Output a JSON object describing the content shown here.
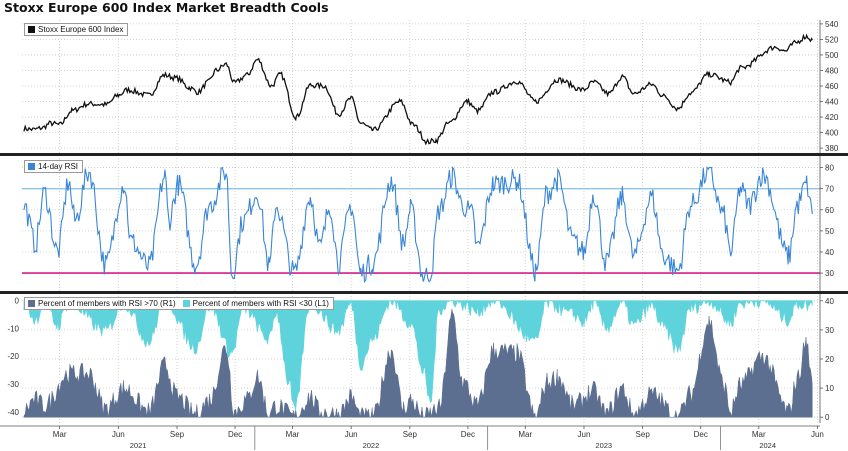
{
  "title": "Stoxx Europe 600 Index Market Breadth Cools",
  "colors": {
    "index_line": "#111111",
    "rsi_line": "#3a86d4",
    "overbought_line": "#8ec5e6",
    "oversold_line": "#d61c8a",
    "pct_above70": "#5c6f91",
    "pct_below30": "#5fd3dc"
  },
  "chart_data": [
    {
      "type": "line",
      "panel": "top",
      "series": [
        {
          "name": "Stoxx Europe 600 Index",
          "anchors": [
            [
              "2021-01-04",
              405
            ],
            [
              "2021-01-20",
              404
            ],
            [
              "2021-02-01",
              406
            ],
            [
              "2021-02-15",
              412
            ],
            [
              "2021-03-01",
              410
            ],
            [
              "2021-03-20",
              428
            ],
            [
              "2021-04-15",
              437
            ],
            [
              "2021-05-13",
              436
            ],
            [
              "2021-06-01",
              448
            ],
            [
              "2021-06-15",
              455
            ],
            [
              "2021-07-19",
              448
            ],
            [
              "2021-08-12",
              474
            ],
            [
              "2021-09-01",
              470
            ],
            [
              "2021-09-20",
              458
            ],
            [
              "2021-10-04",
              452
            ],
            [
              "2021-10-20",
              465
            ],
            [
              "2021-11-01",
              480
            ],
            [
              "2021-11-17",
              488
            ],
            [
              "2021-11-30",
              464
            ],
            [
              "2021-12-20",
              474
            ],
            [
              "2022-01-05",
              494
            ],
            [
              "2022-01-27",
              460
            ],
            [
              "2022-02-10",
              475
            ],
            [
              "2022-03-07",
              420
            ],
            [
              "2022-03-29",
              461
            ],
            [
              "2022-04-20",
              460
            ],
            [
              "2022-05-12",
              424
            ],
            [
              "2022-06-01",
              444
            ],
            [
              "2022-06-16",
              412
            ],
            [
              "2022-07-05",
              403
            ],
            [
              "2022-08-17",
              440
            ],
            [
              "2022-09-06",
              410
            ],
            [
              "2022-09-29",
              388
            ],
            [
              "2022-10-12",
              390
            ],
            [
              "2022-11-01",
              412
            ],
            [
              "2022-11-30",
              440
            ],
            [
              "2022-12-16",
              428
            ],
            [
              "2023-01-10",
              452
            ],
            [
              "2023-02-16",
              466
            ],
            [
              "2023-03-17",
              440
            ],
            [
              "2023-04-21",
              468
            ],
            [
              "2023-05-31",
              455
            ],
            [
              "2023-06-16",
              465
            ],
            [
              "2023-07-10",
              450
            ],
            [
              "2023-07-31",
              472
            ],
            [
              "2023-08-18",
              450
            ],
            [
              "2023-09-15",
              462
            ],
            [
              "2023-10-04",
              447
            ],
            [
              "2023-10-26",
              431
            ],
            [
              "2023-11-15",
              451
            ],
            [
              "2023-12-14",
              475
            ],
            [
              "2024-01-17",
              465
            ],
            [
              "2024-02-01",
              483
            ],
            [
              "2024-03-28",
              510
            ],
            [
              "2024-04-12",
              505
            ],
            [
              "2024-04-26",
              515
            ],
            [
              "2024-05-15",
              524
            ],
            [
              "2024-05-24",
              519
            ]
          ]
        }
      ],
      "ylim": [
        375,
        545
      ],
      "yticks": [
        380,
        400,
        420,
        440,
        460,
        480,
        500,
        520,
        540
      ]
    },
    {
      "type": "line",
      "panel": "middle",
      "series": [
        {
          "name": "14-day RSI",
          "anchors": [
            [
              "2021-01-04",
              62
            ],
            [
              "2021-01-22",
              44
            ],
            [
              "2021-02-05",
              68
            ],
            [
              "2021-02-26",
              40
            ],
            [
              "2021-03-15",
              73
            ],
            [
              "2021-03-25",
              55
            ],
            [
              "2021-04-16",
              78
            ],
            [
              "2021-05-12",
              34
            ],
            [
              "2021-06-10",
              72
            ],
            [
              "2021-06-21",
              45
            ],
            [
              "2021-07-19",
              33
            ],
            [
              "2021-08-13",
              76
            ],
            [
              "2021-08-19",
              55
            ],
            [
              "2021-09-03",
              72
            ],
            [
              "2021-09-30",
              34
            ],
            [
              "2021-10-22",
              62
            ],
            [
              "2021-11-17",
              78
            ],
            [
              "2021-11-26",
              30
            ],
            [
              "2021-12-14",
              55
            ],
            [
              "2022-01-05",
              68
            ],
            [
              "2022-01-24",
              33
            ],
            [
              "2022-02-03",
              62
            ],
            [
              "2022-03-04",
              30
            ],
            [
              "2022-03-29",
              66
            ],
            [
              "2022-04-13",
              42
            ],
            [
              "2022-04-29",
              62
            ],
            [
              "2022-05-12",
              35
            ],
            [
              "2022-06-01",
              62
            ],
            [
              "2022-06-16",
              30
            ],
            [
              "2022-07-05",
              35
            ],
            [
              "2022-08-03",
              74
            ],
            [
              "2022-08-22",
              44
            ],
            [
              "2022-09-02",
              60
            ],
            [
              "2022-09-23",
              28
            ],
            [
              "2022-10-03",
              30
            ],
            [
              "2022-10-17",
              60
            ],
            [
              "2022-11-07",
              76
            ],
            [
              "2022-11-23",
              62
            ],
            [
              "2022-12-07",
              58
            ],
            [
              "2022-12-16",
              42
            ],
            [
              "2023-01-10",
              72
            ],
            [
              "2023-02-16",
              74
            ],
            [
              "2023-03-17",
              31
            ],
            [
              "2023-04-04",
              68
            ],
            [
              "2023-04-21",
              74
            ],
            [
              "2023-05-15",
              45
            ],
            [
              "2023-06-01",
              40
            ],
            [
              "2023-06-16",
              68
            ],
            [
              "2023-07-06",
              35
            ],
            [
              "2023-07-31",
              66
            ],
            [
              "2023-08-18",
              38
            ],
            [
              "2023-09-15",
              66
            ],
            [
              "2023-10-04",
              38
            ],
            [
              "2023-10-26",
              31
            ],
            [
              "2023-11-15",
              62
            ],
            [
              "2023-12-14",
              78
            ],
            [
              "2024-01-05",
              58
            ],
            [
              "2024-01-17",
              40
            ],
            [
              "2024-02-01",
              70
            ],
            [
              "2024-02-15",
              62
            ],
            [
              "2024-03-07",
              77
            ],
            [
              "2024-04-17",
              38
            ],
            [
              "2024-04-30",
              62
            ],
            [
              "2024-05-15",
              72
            ],
            [
              "2024-05-24",
              58
            ]
          ]
        }
      ],
      "ylim": [
        22,
        85
      ],
      "yticks": [
        30,
        40,
        50,
        60,
        70,
        80
      ],
      "reference_lines": [
        70,
        30
      ]
    },
    {
      "type": "area",
      "panel": "bottom",
      "series": [
        {
          "name": "Percent of members with RSI >70 (R1)",
          "axis": "right",
          "anchors": [
            [
              "2021-01-04",
              2
            ],
            [
              "2021-01-20",
              6
            ],
            [
              "2021-02-05",
              4
            ],
            [
              "2021-03-15",
              15
            ],
            [
              "2021-04-16",
              15
            ],
            [
              "2021-05-12",
              3
            ],
            [
              "2021-06-10",
              10
            ],
            [
              "2021-07-19",
              2
            ],
            [
              "2021-08-13",
              18
            ],
            [
              "2021-09-01",
              7
            ],
            [
              "2021-09-30",
              1
            ],
            [
              "2021-10-22",
              6
            ],
            [
              "2021-11-17",
              24
            ],
            [
              "2021-11-30",
              2
            ],
            [
              "2021-12-20",
              6
            ],
            [
              "2022-01-05",
              14
            ],
            [
              "2022-01-24",
              1
            ],
            [
              "2022-02-03",
              4
            ],
            [
              "2022-03-04",
              0
            ],
            [
              "2022-03-29",
              7
            ],
            [
              "2022-04-13",
              2
            ],
            [
              "2022-05-12",
              1
            ],
            [
              "2022-06-01",
              7
            ],
            [
              "2022-06-16",
              0
            ],
            [
              "2022-07-05",
              0
            ],
            [
              "2022-08-03",
              23
            ],
            [
              "2022-08-22",
              3
            ],
            [
              "2022-09-02",
              6
            ],
            [
              "2022-09-23",
              0
            ],
            [
              "2022-10-17",
              3
            ],
            [
              "2022-11-07",
              35
            ],
            [
              "2022-11-23",
              12
            ],
            [
              "2022-12-16",
              4
            ],
            [
              "2023-01-10",
              23
            ],
            [
              "2023-02-16",
              22
            ],
            [
              "2023-03-17",
              0
            ],
            [
              "2023-04-04",
              12
            ],
            [
              "2023-04-21",
              14
            ],
            [
              "2023-05-15",
              4
            ],
            [
              "2023-06-16",
              9
            ],
            [
              "2023-07-06",
              1
            ],
            [
              "2023-07-31",
              10
            ],
            [
              "2023-08-18",
              1
            ],
            [
              "2023-09-15",
              8
            ],
            [
              "2023-10-26",
              0
            ],
            [
              "2023-11-15",
              8
            ],
            [
              "2023-12-14",
              33
            ],
            [
              "2024-01-05",
              12
            ],
            [
              "2024-01-17",
              2
            ],
            [
              "2024-02-01",
              11
            ],
            [
              "2024-03-07",
              21
            ],
            [
              "2024-04-17",
              2
            ],
            [
              "2024-04-30",
              13
            ],
            [
              "2024-05-15",
              26
            ],
            [
              "2024-05-24",
              11
            ]
          ]
        },
        {
          "name": "Percent of members with RSI <30 (L1)",
          "axis": "left",
          "anchors": [
            [
              "2021-01-04",
              -1
            ],
            [
              "2021-01-22",
              -7
            ],
            [
              "2021-02-05",
              -1
            ],
            [
              "2021-02-26",
              -9
            ],
            [
              "2021-03-15",
              -1
            ],
            [
              "2021-05-12",
              -11
            ],
            [
              "2021-06-10",
              -1
            ],
            [
              "2021-07-19",
              -15
            ],
            [
              "2021-08-13",
              0
            ],
            [
              "2021-09-30",
              -17
            ],
            [
              "2021-10-22",
              -2
            ],
            [
              "2021-11-26",
              -19
            ],
            [
              "2021-12-14",
              -3
            ],
            [
              "2022-01-24",
              -14
            ],
            [
              "2022-02-03",
              -4
            ],
            [
              "2022-02-24",
              -30
            ],
            [
              "2022-03-04",
              -40
            ],
            [
              "2022-03-29",
              -1
            ],
            [
              "2022-05-12",
              -11
            ],
            [
              "2022-06-01",
              -1
            ],
            [
              "2022-06-16",
              -23
            ],
            [
              "2022-07-05",
              -14
            ],
            [
              "2022-08-03",
              0
            ],
            [
              "2022-09-02",
              -8
            ],
            [
              "2022-09-23",
              -26
            ],
            [
              "2022-10-03",
              -37
            ],
            [
              "2022-10-17",
              -3
            ],
            [
              "2022-11-07",
              0
            ],
            [
              "2022-12-16",
              -4
            ],
            [
              "2023-01-10",
              0
            ],
            [
              "2023-03-17",
              -15
            ],
            [
              "2023-04-04",
              -1
            ],
            [
              "2023-05-15",
              -5
            ],
            [
              "2023-06-01",
              -8
            ],
            [
              "2023-06-16",
              -1
            ],
            [
              "2023-07-06",
              -10
            ],
            [
              "2023-07-31",
              -1
            ],
            [
              "2023-08-18",
              -9
            ],
            [
              "2023-09-15",
              -2
            ],
            [
              "2023-10-04",
              -10
            ],
            [
              "2023-10-26",
              -18
            ],
            [
              "2023-11-15",
              -3
            ],
            [
              "2023-12-14",
              0
            ],
            [
              "2024-01-17",
              -8
            ],
            [
              "2024-02-01",
              -1
            ],
            [
              "2024-03-07",
              0
            ],
            [
              "2024-04-17",
              -7
            ],
            [
              "2024-04-30",
              -1
            ],
            [
              "2024-05-24",
              -2
            ]
          ]
        }
      ],
      "ylim_left": [
        -44,
        2
      ],
      "yticks_left": [
        0,
        -10,
        -20,
        -30,
        -40
      ],
      "ylim_right": [
        -2,
        42
      ],
      "yticks_right": [
        0,
        10,
        20,
        30,
        40
      ]
    }
  ],
  "x_axis": {
    "range": [
      "2021-01-01",
      "2024-06-05"
    ],
    "months": [
      {
        "label": "Mar",
        "date": "2021-03-01"
      },
      {
        "label": "Jun",
        "date": "2021-06-01"
      },
      {
        "label": "Sep",
        "date": "2021-09-01"
      },
      {
        "label": "Dec",
        "date": "2021-12-01"
      },
      {
        "label": "Mar",
        "date": "2022-03-01"
      },
      {
        "label": "Jun",
        "date": "2022-06-01"
      },
      {
        "label": "Sep",
        "date": "2022-09-01"
      },
      {
        "label": "Dec",
        "date": "2022-12-01"
      },
      {
        "label": "Mar",
        "date": "2023-03-01"
      },
      {
        "label": "Jun",
        "date": "2023-06-01"
      },
      {
        "label": "Sep",
        "date": "2023-09-01"
      },
      {
        "label": "Dec",
        "date": "2023-12-01"
      },
      {
        "label": "Mar",
        "date": "2024-03-01"
      },
      {
        "label": "Jun",
        "date": "2024-06-01"
      }
    ],
    "years": [
      {
        "label": "2021",
        "date": "2021-07-02"
      },
      {
        "label": "2022",
        "date": "2022-07-02"
      },
      {
        "label": "2023",
        "date": "2023-07-02"
      },
      {
        "label": "2024",
        "date": "2024-03-15"
      }
    ]
  }
}
